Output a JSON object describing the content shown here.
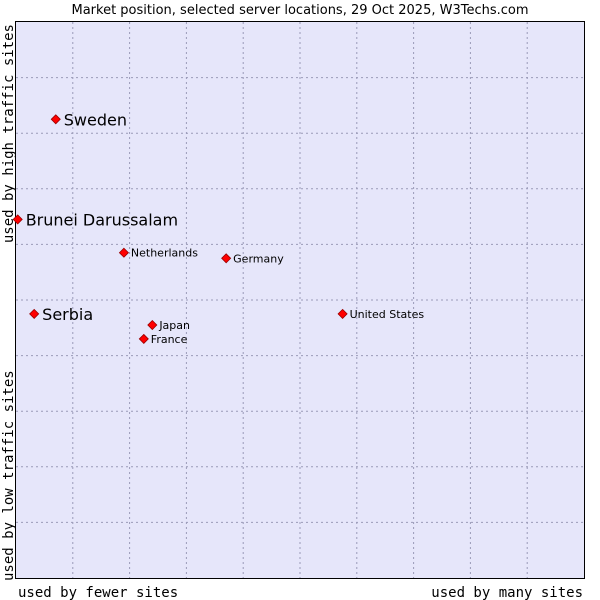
{
  "chart_data": {
    "type": "scatter",
    "title": "Market position, selected server locations, 29 Oct 2025, W3Techs.com",
    "xlabel_left": "used by fewer sites",
    "xlabel_right": "used by many sites",
    "ylabel_bottom": "used by low traffic sites",
    "ylabel_top": "used by high traffic sites",
    "xlim": [
      0,
      100
    ],
    "ylim": [
      0,
      100
    ],
    "grid": true,
    "colors": {
      "plot_background": "#e6e6fa",
      "grid": "#9a9ab8",
      "point": "#ff0000",
      "point_outline": "#990000"
    },
    "points": [
      {
        "label": "Sweden",
        "x": 7.0,
        "y": 82.5,
        "emphasis": true
      },
      {
        "label": "Brunei Darussalam",
        "x": 0.3,
        "y": 64.5,
        "emphasis": true
      },
      {
        "label": "Netherlands",
        "x": 19.0,
        "y": 58.5,
        "emphasis": false
      },
      {
        "label": "Germany",
        "x": 37.0,
        "y": 57.5,
        "emphasis": false
      },
      {
        "label": "Serbia",
        "x": 3.2,
        "y": 47.5,
        "emphasis": true
      },
      {
        "label": "Japan",
        "x": 24.0,
        "y": 45.5,
        "emphasis": false
      },
      {
        "label": "United States",
        "x": 57.5,
        "y": 47.5,
        "emphasis": false
      },
      {
        "label": "France",
        "x": 22.5,
        "y": 43.0,
        "emphasis": false
      }
    ]
  }
}
